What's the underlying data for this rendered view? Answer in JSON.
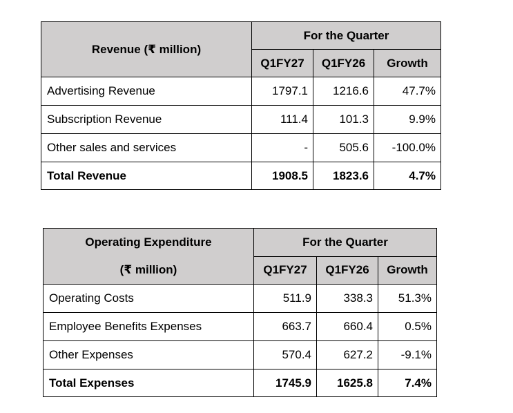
{
  "revenue_table": {
    "header_label": "Revenue (₹ million)",
    "period_header": "For the Quarter",
    "columns": [
      "Q1FY27",
      "Q1FY26",
      "Growth"
    ],
    "rows": [
      {
        "label": "Advertising Revenue",
        "values": [
          "1797.1",
          "1216.6",
          "47.7%"
        ]
      },
      {
        "label": "Subscription Revenue",
        "values": [
          "111.4",
          "101.3",
          "9.9%"
        ]
      },
      {
        "label": "Other sales and services",
        "values": [
          "-",
          "505.6",
          "-100.0%"
        ]
      },
      {
        "label": "Total Revenue",
        "values": [
          "1908.5",
          "1823.6",
          "4.7%"
        ]
      }
    ]
  },
  "opex_table": {
    "header_label_line1": "Operating Expenditure",
    "header_label_line2": "(₹ million)",
    "period_header": "For the Quarter",
    "columns": [
      "Q1FY27",
      "Q1FY26",
      "Growth"
    ],
    "rows": [
      {
        "label": "Operating Costs",
        "values": [
          "511.9",
          "338.3",
          "51.3%"
        ]
      },
      {
        "label": "Employee Benefits Expenses",
        "values": [
          "663.7",
          "660.4",
          "0.5%"
        ]
      },
      {
        "label": "Other Expenses",
        "values": [
          "570.4",
          "627.2",
          "-9.1%"
        ]
      },
      {
        "label": "Total Expenses",
        "values": [
          "1745.9",
          "1625.8",
          "7.4%"
        ]
      }
    ]
  }
}
